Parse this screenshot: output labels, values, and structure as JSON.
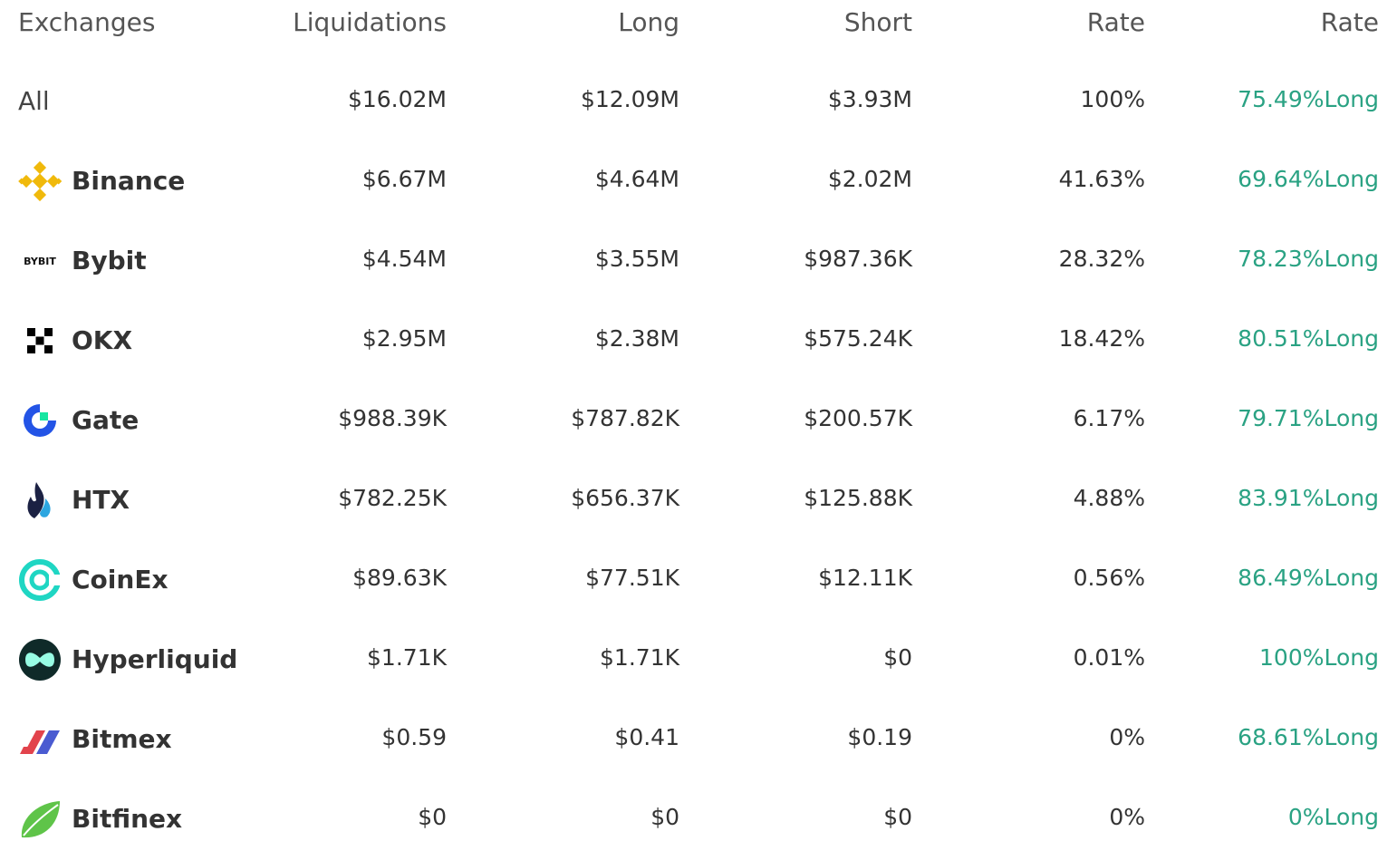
{
  "table": {
    "headers": [
      "Exchanges",
      "Liquidations",
      "Long",
      "Short",
      "Rate",
      "Rate"
    ],
    "rows": [
      {
        "cells": [
          "All",
          "$16.02M",
          "$12.09M",
          "$3.93M",
          "100%",
          "75.49%Long"
        ]
      },
      {
        "cells": [
          "Binance",
          "$6.67M",
          "$4.64M",
          "$2.02M",
          "41.63%",
          "69.64%Long"
        ]
      },
      {
        "cells": [
          "Bybit",
          "$4.54M",
          "$3.55M",
          "$987.36K",
          "28.32%",
          "78.23%Long"
        ],
        "logo": "BYBIT"
      },
      {
        "cells": [
          "OKX",
          "$2.95M",
          "$2.38M",
          "$575.24K",
          "18.42%",
          "80.51%Long"
        ]
      },
      {
        "cells": [
          "Gate",
          "$988.39K",
          "$787.82K",
          "$200.57K",
          "6.17%",
          "79.71%Long"
        ]
      },
      {
        "cells": [
          "HTX",
          "$782.25K",
          "$656.37K",
          "$125.88K",
          "4.88%",
          "83.91%Long"
        ]
      },
      {
        "cells": [
          "CoinEx",
          "$89.63K",
          "$77.51K",
          "$12.11K",
          "0.56%",
          "86.49%Long"
        ]
      },
      {
        "cells": [
          "Hyperliquid",
          "$1.71K",
          "$1.71K",
          "$0",
          "0.01%",
          "100%Long"
        ]
      },
      {
        "cells": [
          "Bitmex",
          "$0.59",
          "$0.41",
          "$0.19",
          "0%",
          "68.61%Long"
        ]
      },
      {
        "cells": [
          "Bitfinex",
          "$0",
          "$0",
          "$0",
          "0%",
          "0%Long"
        ]
      }
    ]
  }
}
